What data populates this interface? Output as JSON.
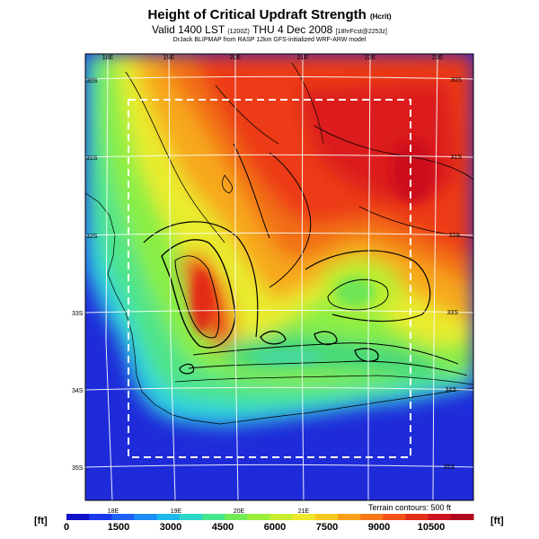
{
  "header": {
    "title": "Height of Critical Updraft Strength",
    "title_suffix": "(Hcrit)",
    "valid_line": "Valid 1400 LST",
    "valid_code": "(1200Z)",
    "valid_date": "THU 4 Dec 2008",
    "forecast_tag": "[18hrFcst@2253z]",
    "model_line": "DrJack BLIPMAP from RASP 12km GFS-initialized WRF-ARW model"
  },
  "map": {
    "top_lon_labels": [
      "18E",
      "19E",
      "20E",
      "21E",
      "22E",
      "23E"
    ],
    "bottom_lon_labels": [
      "18E",
      "19E",
      "20E",
      "21E"
    ],
    "left_lat_labels": [
      "30S",
      "31S",
      "32S",
      "33S",
      "34S",
      "35S"
    ],
    "right_lat_labels": [
      "30S",
      "31S",
      "32S",
      "33S",
      "34S",
      "35S"
    ],
    "terrain_note": "Terrain contours: 500 ft",
    "ocean_color": "#1f2bd9",
    "max_color": "#c4001a"
  },
  "colorbar": {
    "unit_left": "[ft]",
    "unit_right": "[ft]",
    "tick_labels": [
      "0",
      "1500",
      "3000",
      "4500",
      "6000",
      "7500",
      "9000",
      "10500"
    ],
    "colors": [
      "#1111cc",
      "#1c38ee",
      "#1f62f5",
      "#1c8ef5",
      "#1cb8ee",
      "#29d6c8",
      "#46e48c",
      "#72ec54",
      "#9af03c",
      "#c8ee2e",
      "#eee82a",
      "#f6c81e",
      "#f8a01a",
      "#f67818",
      "#f25218",
      "#e42e18",
      "#cc141e",
      "#b0081e"
    ]
  }
}
